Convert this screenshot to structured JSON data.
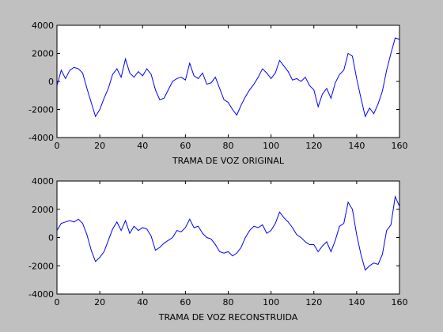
{
  "chart_data": [
    {
      "type": "line",
      "x_label": "TRAMA DE VOZ ORIGINAL",
      "x": [
        0,
        2,
        4,
        6,
        8,
        10,
        12,
        14,
        16,
        18,
        20,
        22,
        24,
        26,
        28,
        30,
        32,
        34,
        36,
        38,
        40,
        42,
        44,
        46,
        48,
        50,
        52,
        54,
        56,
        58,
        60,
        62,
        64,
        66,
        68,
        70,
        72,
        74,
        76,
        78,
        80,
        82,
        84,
        86,
        88,
        90,
        92,
        94,
        96,
        98,
        100,
        102,
        104,
        106,
        108,
        110,
        112,
        114,
        116,
        118,
        120,
        122,
        124,
        126,
        128,
        130,
        132,
        134,
        136,
        138,
        140,
        142,
        144,
        146,
        148,
        150,
        152,
        154,
        156,
        158,
        160
      ],
      "series": [
        {
          "color": "#0000ff",
          "values": [
            -300,
            800,
            200,
            800,
            1000,
            900,
            600,
            -500,
            -1500,
            -2500,
            -2000,
            -1200,
            -500,
            500,
            900,
            300,
            1600,
            600,
            300,
            700,
            400,
            900,
            500,
            -600,
            -1300,
            -1200,
            -600,
            0,
            200,
            300,
            100,
            1300,
            400,
            200,
            600,
            -200,
            -100,
            300,
            -500,
            -1300,
            -1500,
            -2000,
            -2400,
            -1700,
            -1100,
            -600,
            -200,
            300,
            900,
            600,
            200,
            600,
            1500,
            1100,
            700,
            100,
            200,
            0,
            300,
            -300,
            -600,
            -1800,
            -900,
            -500,
            -1200,
            -100,
            500,
            800,
            2000,
            1800,
            200,
            -1200,
            -2500,
            -1900,
            -2300,
            -1600,
            -700,
            800,
            2000,
            3100,
            3000
          ]
        }
      ],
      "xlim": [
        0,
        160
      ],
      "ylim": [
        -4000,
        4000
      ],
      "xticks": [
        0,
        20,
        40,
        60,
        80,
        100,
        120,
        140,
        160
      ],
      "yticks": [
        -4000,
        -2000,
        0,
        2000,
        4000
      ]
    },
    {
      "type": "line",
      "x_label": "TRAMA DE VOZ RECONSTRUIDA",
      "x": [
        0,
        2,
        4,
        6,
        8,
        10,
        12,
        14,
        16,
        18,
        20,
        22,
        24,
        26,
        28,
        30,
        32,
        34,
        36,
        38,
        40,
        42,
        44,
        46,
        48,
        50,
        52,
        54,
        56,
        58,
        60,
        62,
        64,
        66,
        68,
        70,
        72,
        74,
        76,
        78,
        80,
        82,
        84,
        86,
        88,
        90,
        92,
        94,
        96,
        98,
        100,
        102,
        104,
        106,
        108,
        110,
        112,
        114,
        116,
        118,
        120,
        122,
        124,
        126,
        128,
        130,
        132,
        134,
        136,
        138,
        140,
        142,
        144,
        146,
        148,
        150,
        152,
        154,
        156,
        158,
        160
      ],
      "series": [
        {
          "color": "#0000ff",
          "values": [
            500,
            1000,
            1100,
            1200,
            1100,
            1300,
            1000,
            200,
            -900,
            -1700,
            -1400,
            -1000,
            -200,
            600,
            1100,
            500,
            1200,
            300,
            800,
            500,
            700,
            600,
            100,
            -900,
            -700,
            -400,
            -200,
            0,
            500,
            400,
            700,
            1300,
            700,
            800,
            300,
            0,
            -100,
            -500,
            -1000,
            -1100,
            -1000,
            -1300,
            -1100,
            -700,
            0,
            500,
            800,
            700,
            900,
            300,
            500,
            1000,
            1800,
            1400,
            1100,
            700,
            200,
            0,
            -300,
            -500,
            -500,
            -1000,
            -600,
            -300,
            -1000,
            -200,
            800,
            1000,
            2500,
            2000,
            200,
            -1200,
            -2300,
            -2000,
            -1800,
            -1900,
            -1200,
            500,
            900,
            2900,
            2200
          ]
        }
      ],
      "xlim": [
        0,
        160
      ],
      "ylim": [
        -4000,
        4000
      ],
      "xticks": [
        0,
        20,
        40,
        60,
        80,
        100,
        120,
        140,
        160
      ],
      "yticks": [
        -4000,
        -2000,
        0,
        2000,
        4000
      ]
    }
  ]
}
